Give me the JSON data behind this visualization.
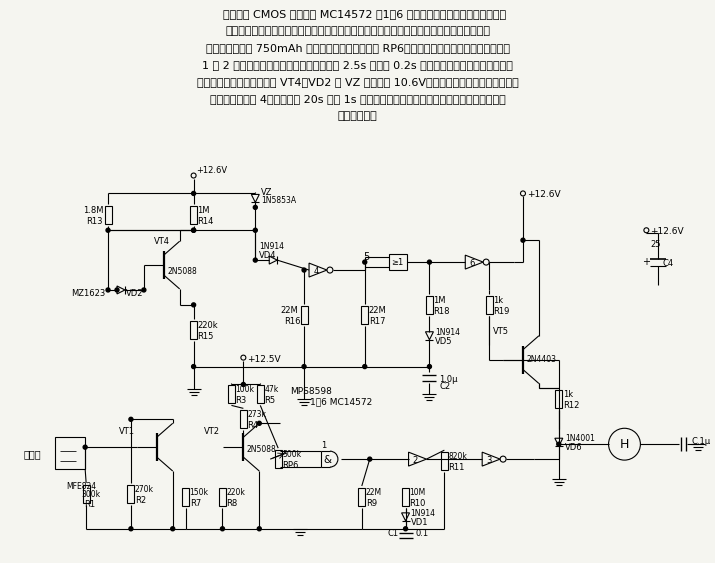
{
  "background_color": "#f5f5f0",
  "text_color": "#1a1a1a",
  "figsize": [
    7.15,
    5.63
  ],
  "dpi": 100,
  "text_block": [
    "    电路中由 CMOS 集成电路 MC14572 的1～6 个门组成两个报警振荡器电路。一",
    "个报警电路在电离室中出现烟雾时动作，另一个在电池电压过低时动作。各电路的闲置电流",
    "均很小，是以使 750mAh 电流至少工作一年。调节 RP6，给出所要求的烟雾检测灵敏度。门",
    "1 和 2 组成多谐振荡器，在有烟雾情况下以 2.5s 接通和 0.2s 断开的周期断续地驱动报警器。",
    "当电池电压过低时，比较器 VT4、VD2 和 VZ 断开（约 10.6V），并触发电池低限无稳态多谐",
    "振荡器的反相器 4，随后以每 20s 通电 1s 的不稳定速率驱动直流报警器，产生需要交换电池",
    "的报警信号。"
  ]
}
